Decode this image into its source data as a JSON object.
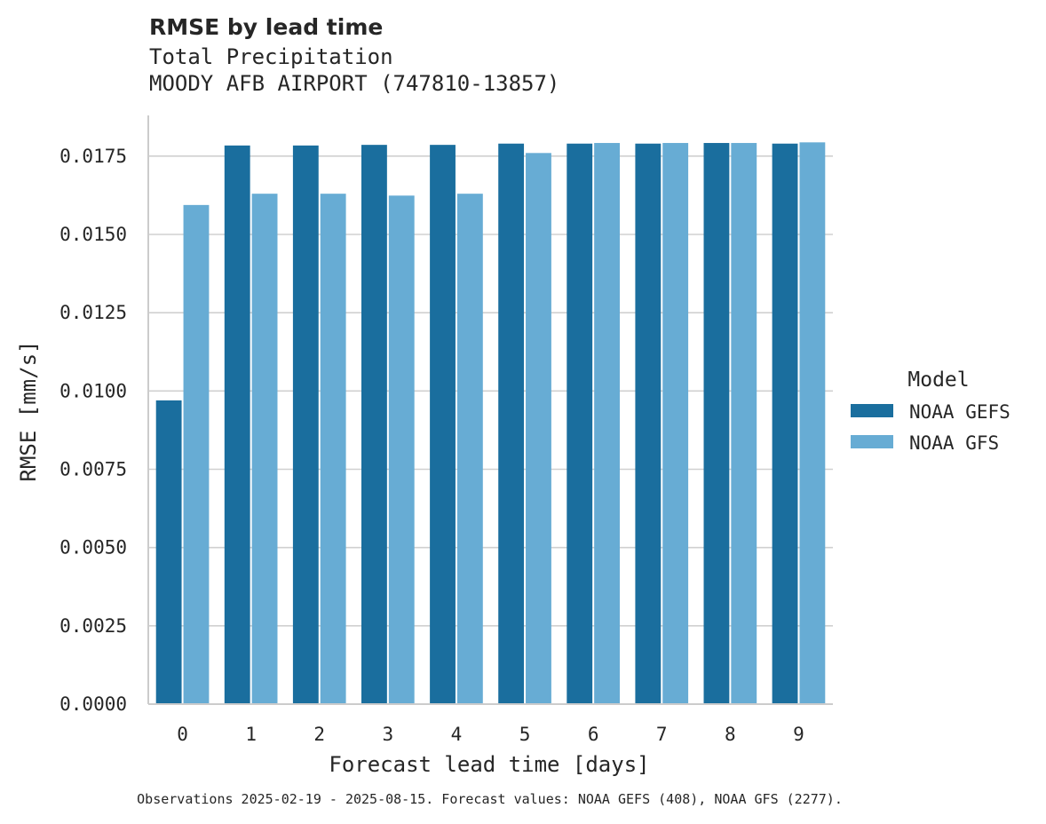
{
  "chart_data": {
    "type": "bar",
    "title": "RMSE by lead time",
    "subtitle_lines": [
      "Total Precipitation",
      "MOODY AFB AIRPORT (747810-13857)"
    ],
    "xlabel": "Forecast lead time [days]",
    "ylabel": "RMSE [mm/s]",
    "categories": [
      "0",
      "1",
      "2",
      "3",
      "4",
      "5",
      "6",
      "7",
      "8",
      "9"
    ],
    "ylim": [
      0,
      0.0188
    ],
    "yticks": [
      "0.0000",
      "0.0025",
      "0.0050",
      "0.0075",
      "0.0100",
      "0.0125",
      "0.0150",
      "0.0175"
    ],
    "grid": "horizontal",
    "legend": {
      "title": "Model",
      "placement": "right"
    },
    "series": [
      {
        "name": "NOAA GEFS",
        "color": "#1a6e9e",
        "values": [
          0.0097,
          0.01784,
          0.01784,
          0.01786,
          0.01786,
          0.0179,
          0.0179,
          0.0179,
          0.01792,
          0.0179
        ]
      },
      {
        "name": "NOAA GFS",
        "color": "#67acd4",
        "values": [
          0.01594,
          0.0163,
          0.0163,
          0.01624,
          0.0163,
          0.0176,
          0.01792,
          0.01792,
          0.01792,
          0.01794
        ]
      }
    ],
    "footnote": "Observations 2025-02-19 - 2025-08-15. Forecast values: NOAA GEFS (408), NOAA GFS (2277)."
  }
}
